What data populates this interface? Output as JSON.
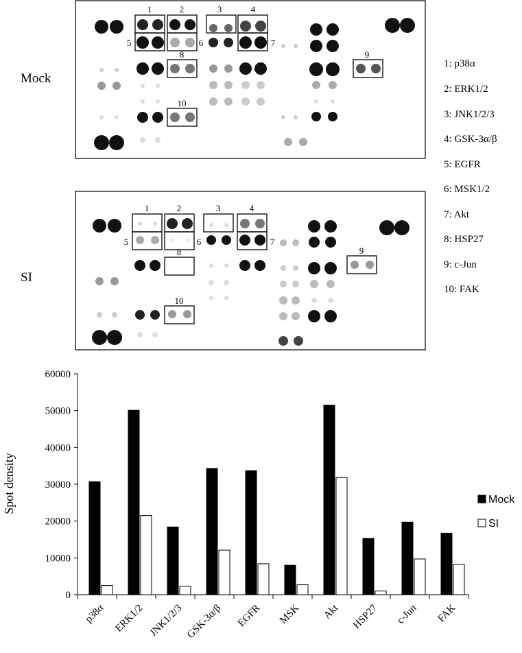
{
  "blots": {
    "mock_label": "Mock",
    "si_label": "SI",
    "box_numbers": [
      "1",
      "2",
      "3",
      "4",
      "5",
      "6",
      "7",
      "8",
      "9",
      "10"
    ],
    "legend": [
      "1: p38α",
      "2: ERK1/2",
      "3: JNK1/2/3",
      "4: GSK-3α/β",
      "5: EGFR",
      "6: MSK1/2",
      "7: Akt",
      "8: HSP27",
      "9: c-Jun",
      "10: FAK"
    ]
  },
  "chart_data": {
    "type": "bar",
    "categories": [
      "p38α",
      "ERK1/2",
      "JNK1/2/3",
      "GSK-3α/β",
      "EGFR",
      "MSK",
      "Akt",
      "HSP27",
      "c-Jun",
      "FAK"
    ],
    "series": [
      {
        "name": "Mock",
        "color": "#000000",
        "values": [
          30700,
          50100,
          18400,
          34300,
          33700,
          8000,
          51500,
          15300,
          19700,
          16700
        ]
      },
      {
        "name": "SI",
        "color": "#ffffff",
        "values": [
          2500,
          21500,
          2300,
          12100,
          8400,
          2700,
          31800,
          1000,
          9700,
          8300
        ]
      }
    ],
    "title": "",
    "xlabel": "",
    "ylabel": "Spot density",
    "ylim": [
      0,
      60000
    ],
    "yticks": [
      0,
      10000,
      20000,
      30000,
      40000,
      50000,
      60000
    ],
    "grid": false,
    "legend_position": "right"
  }
}
